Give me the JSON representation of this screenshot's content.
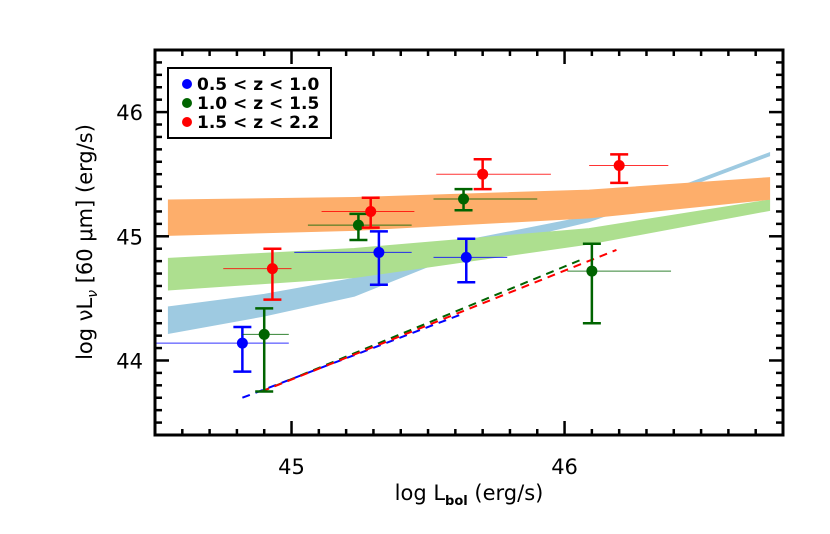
{
  "chart_data": {
    "type": "scatter",
    "title": "",
    "xlabel": "log L_bol (erg/s)",
    "xlabel_main": "log L",
    "xlabel_sub": "bol",
    "xlabel_tail": " (erg/s)",
    "ylabel": "log νLν [60 μm] (erg/s)",
    "ylabel_pre": "log νL",
    "ylabel_sub": "ν",
    "ylabel_tail": " [60 μm] (erg/s)",
    "xlim": [
      44.5,
      46.8
    ],
    "ylim": [
      43.4,
      46.5
    ],
    "xticks": [
      45,
      46
    ],
    "yticks": [
      44,
      45,
      46
    ],
    "x_minor_step": 0.1,
    "y_minor_step": 0.1,
    "grid": false,
    "legend_position": "upper left",
    "series": [
      {
        "name": "0.5 < z < 1.0",
        "color": "#0000ff",
        "points": [
          {
            "x": 44.82,
            "y": 44.14,
            "xerr": [
              44.5,
              44.99
            ],
            "yerr": [
              43.91,
              44.27
            ]
          },
          {
            "x": 45.32,
            "y": 44.87,
            "xerr": [
              45.01,
              45.44
            ],
            "yerr": [
              44.61,
              45.04
            ]
          },
          {
            "x": 45.64,
            "y": 44.83,
            "xerr": [
              45.52,
              45.79
            ],
            "yerr": [
              44.63,
              44.98
            ]
          }
        ],
        "dashed_line": [
          [
            44.82,
            43.7
          ],
          [
            45.62,
            44.37
          ]
        ]
      },
      {
        "name": "1.0 < z < 1.5",
        "color": "#006400",
        "points": [
          {
            "x": 44.9,
            "y": 44.21,
            "xerr": [
              44.82,
              44.99
            ],
            "yerr": [
              43.75,
              44.42
            ]
          },
          {
            "x": 45.245,
            "y": 45.09,
            "xerr": [
              45.06,
              45.44
            ],
            "yerr": [
              44.97,
              45.18
            ]
          },
          {
            "x": 45.63,
            "y": 45.3,
            "xerr": [
              45.52,
              45.9
            ],
            "yerr": [
              45.21,
              45.38
            ]
          },
          {
            "x": 46.1,
            "y": 44.72,
            "xerr": [
              46.01,
              46.39
            ],
            "yerr": [
              44.3,
              44.94
            ]
          }
        ],
        "dashed_line": [
          [
            44.89,
            43.75
          ],
          [
            46.07,
            44.82
          ]
        ]
      },
      {
        "name": "1.5 < z < 2.2",
        "color": "#ff0000",
        "points": [
          {
            "x": 44.93,
            "y": 44.74,
            "xerr": [
              44.75,
              45.0
            ],
            "yerr": [
              44.49,
              44.9
            ]
          },
          {
            "x": 45.29,
            "y": 45.2,
            "xerr": [
              45.11,
              45.45
            ],
            "yerr": [
              45.07,
              45.31
            ]
          },
          {
            "x": 45.7,
            "y": 45.5,
            "xerr": [
              45.53,
              45.95
            ],
            "yerr": [
              45.38,
              45.62
            ]
          },
          {
            "x": 46.2,
            "y": 45.57,
            "xerr": [
              46.09,
              46.38
            ],
            "yerr": [
              45.43,
              45.66
            ]
          }
        ],
        "dashed_line": [
          [
            44.89,
            43.75
          ],
          [
            46.19,
            44.89
          ]
        ]
      }
    ],
    "bands": [
      {
        "name": "model-band-low-z",
        "color": "#9ecae1",
        "x": [
          44.55,
          44.9,
          45.23,
          45.65,
          46.09,
          46.4,
          46.75
        ],
        "upper": [
          44.43,
          44.53,
          44.66,
          44.97,
          45.16,
          45.38,
          45.67
        ],
        "lower": [
          44.22,
          44.36,
          44.52,
          44.89,
          45.12,
          45.36,
          45.65
        ]
      },
      {
        "name": "model-band-mid-z",
        "color": "#addf8f",
        "x": [
          44.55,
          45.23,
          46.09,
          46.75
        ],
        "upper": [
          44.82,
          44.9,
          45.06,
          45.29
        ],
        "lower": [
          44.57,
          44.67,
          44.94,
          45.21
        ]
      },
      {
        "name": "model-band-high-z",
        "color": "#fdae6b",
        "x": [
          44.55,
          45.23,
          46.09,
          46.75
        ],
        "upper": [
          45.29,
          45.31,
          45.37,
          45.47
        ],
        "lower": [
          45.01,
          45.05,
          45.15,
          45.3
        ]
      }
    ]
  }
}
